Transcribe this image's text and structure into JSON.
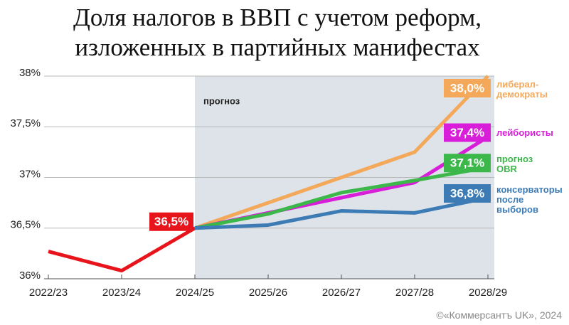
{
  "chart_data": {
    "type": "line",
    "title": "Доля налогов в ВВП с учетом реформ,\nизложенных в партийных манифестах",
    "annotation": "прогноз",
    "source": "©«Коммерсантъ UK», 2024",
    "categories": [
      "2022/23",
      "2023/24",
      "2024/25",
      "2025/26",
      "2026/27",
      "2027/28",
      "2028/29"
    ],
    "ylim": [
      36,
      38
    ],
    "yticks": [
      {
        "value": 36,
        "label": "36%"
      },
      {
        "value": 36.5,
        "label": "36,5%"
      },
      {
        "value": 37,
        "label": "37%"
      },
      {
        "value": 37.5,
        "label": "37,5%"
      },
      {
        "value": 38,
        "label": "38%"
      }
    ],
    "grid": true,
    "series": [
      {
        "color": "#e8141c",
        "values": [
          36.27,
          36.08,
          36.5,
          null,
          null,
          null,
          null
        ],
        "value_labels": [
          null,
          null,
          "36,5%",
          null,
          null,
          null,
          null
        ]
      },
      {
        "name": "либерал-\nдемократы",
        "color": "#f4a85a",
        "values": [
          null,
          null,
          36.5,
          36.75,
          37.0,
          37.25,
          38.0
        ],
        "value_labels": [
          null,
          null,
          null,
          null,
          null,
          null,
          "38,0%"
        ]
      },
      {
        "name": "лейбористы",
        "color": "#d81ed8",
        "values": [
          null,
          null,
          36.5,
          36.65,
          36.8,
          36.95,
          37.4
        ],
        "value_labels": [
          null,
          null,
          null,
          null,
          null,
          null,
          "37,4%"
        ]
      },
      {
        "name": "прогноз\nOBR",
        "color": "#3cb84a",
        "values": [
          null,
          null,
          36.5,
          36.64,
          36.85,
          36.97,
          37.1
        ],
        "value_labels": [
          null,
          null,
          null,
          null,
          null,
          null,
          "37,1%"
        ]
      },
      {
        "name": "консерваторы\nпосле\nвыборов",
        "color": "#3d7bb5",
        "values": [
          null,
          null,
          36.5,
          36.53,
          36.67,
          36.65,
          36.8
        ],
        "value_labels": [
          null,
          null,
          null,
          null,
          null,
          null,
          "36,8%"
        ]
      }
    ]
  }
}
